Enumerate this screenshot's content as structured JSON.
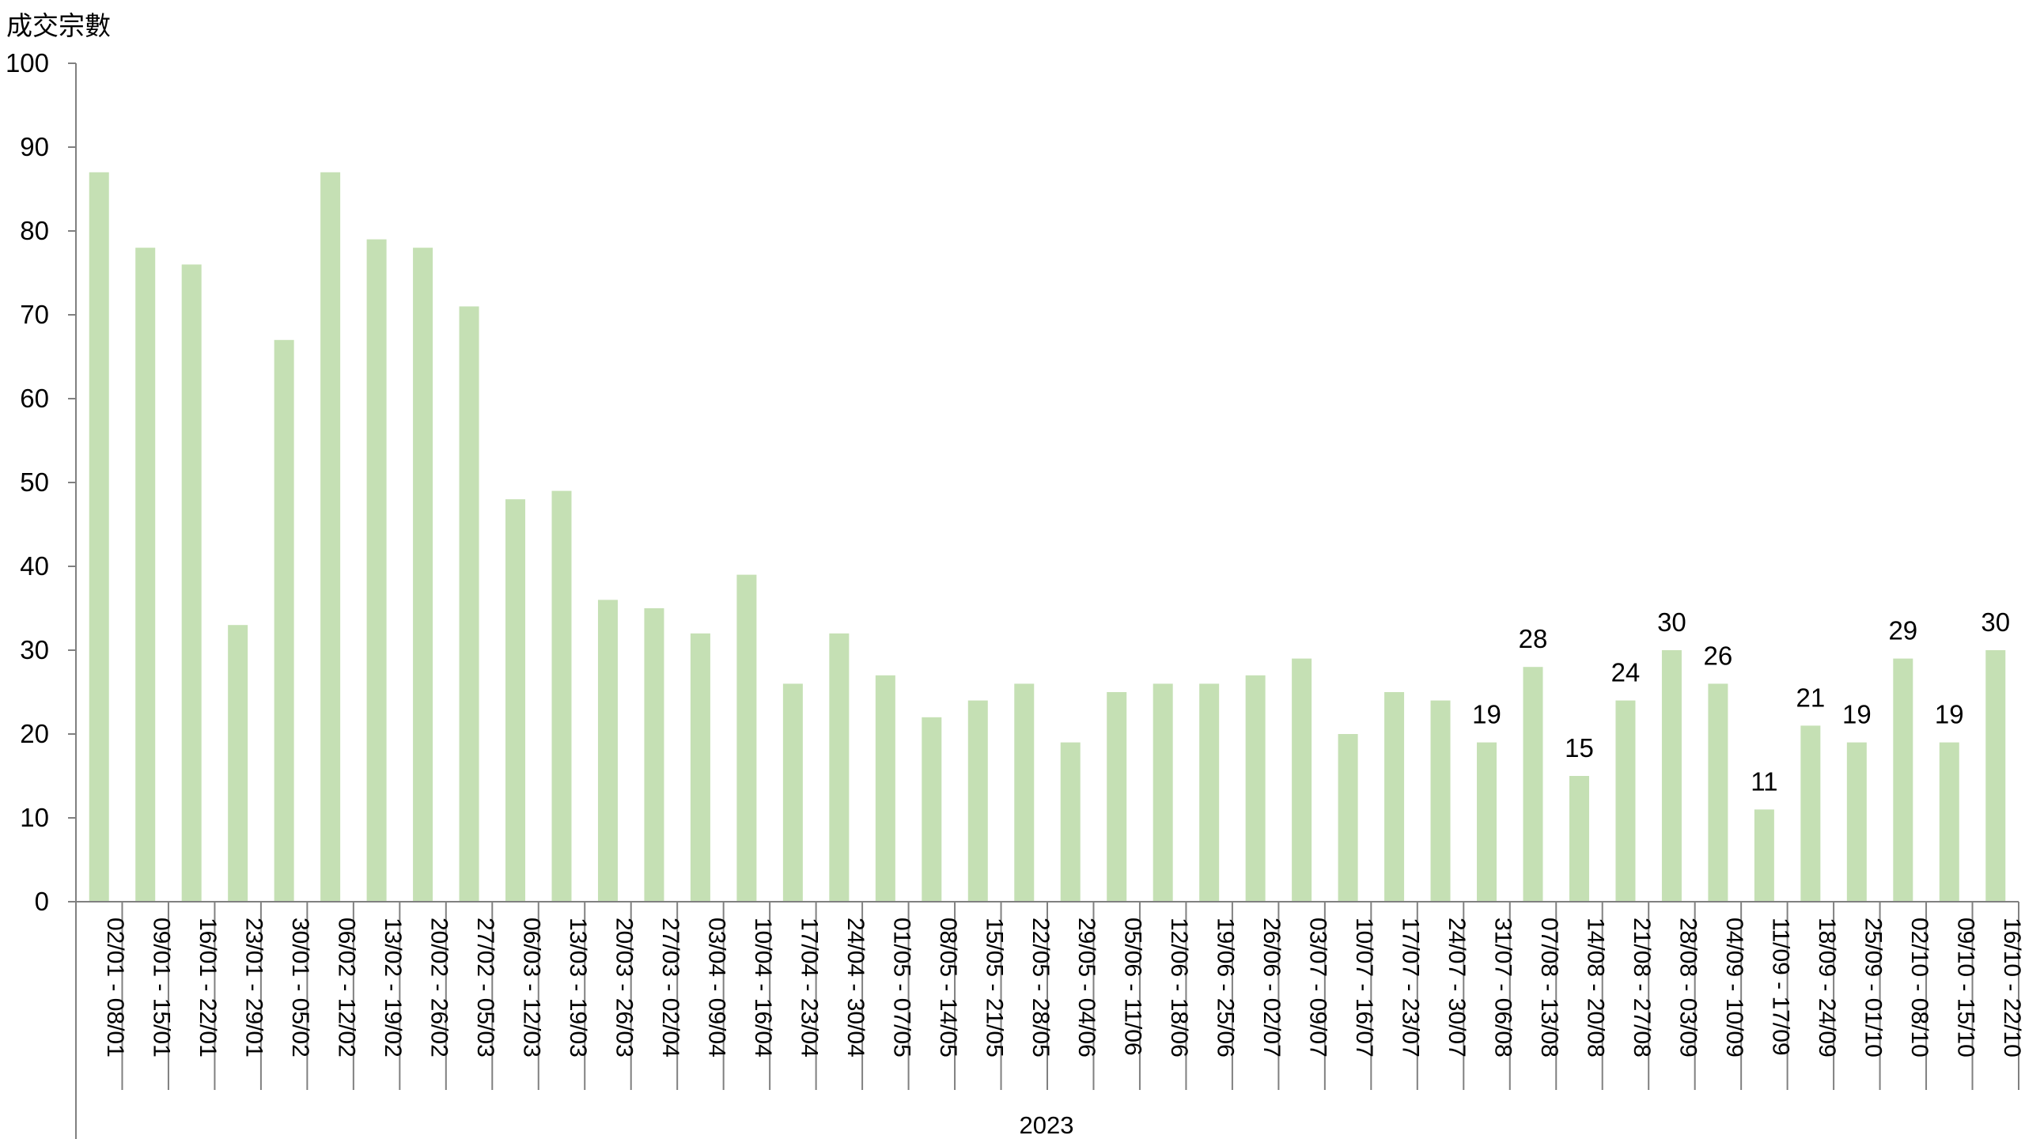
{
  "chart_data": {
    "type": "bar",
    "title": "",
    "ylabel": "成交宗數",
    "xlabel": "",
    "group_label": "2023",
    "ylim": [
      0,
      100
    ],
    "yticks": [
      0,
      10,
      20,
      30,
      40,
      50,
      60,
      70,
      80,
      90,
      100
    ],
    "grid": false,
    "legend": "none",
    "bar_color": "#c5e0b4",
    "categories": [
      "02/01 - 08/01",
      "09/01 - 15/01",
      "16/01 - 22/01",
      "23/01 - 29/01",
      "30/01 - 05/02",
      "06/02 - 12/02",
      "13/02 - 19/02",
      "20/02 - 26/02",
      "27/02 - 05/03",
      "06/03 - 12/03",
      "13/03 - 19/03",
      "20/03 - 26/03",
      "27/03 - 02/04",
      "03/04 - 09/04",
      "10/04 - 16/04",
      "17/04 - 23/04",
      "24/04 - 30/04",
      "01/05 - 07/05",
      "08/05 - 14/05",
      "15/05 - 21/05",
      "22/05 - 28/05",
      "29/05 - 04/06",
      "05/06 - 11/06",
      "12/06 - 18/06",
      "19/06 - 25/06",
      "26/06 - 02/07",
      "03/07 - 09/07",
      "10/07 - 16/07",
      "17/07 - 23/07",
      "24/07 - 30/07",
      "31/07 - 06/08",
      "07/08 - 13/08",
      "14/08 - 20/08",
      "21/08 - 27/08",
      "28/08 - 03/09",
      "04/09 - 10/09",
      "11/09 - 17/09",
      "18/09 - 24/09",
      "25/09 - 01/10",
      "02/10 - 08/10",
      "09/10 - 15/10",
      "16/10 - 22/10"
    ],
    "values": [
      87,
      78,
      76,
      33,
      67,
      87,
      79,
      78,
      71,
      48,
      49,
      36,
      35,
      32,
      39,
      26,
      32,
      27,
      22,
      24,
      26,
      19,
      25,
      26,
      26,
      27,
      29,
      20,
      25,
      24,
      19,
      28,
      15,
      24,
      30,
      26,
      11,
      21,
      19,
      29,
      19,
      30
    ],
    "data_labels": [
      null,
      null,
      null,
      null,
      null,
      null,
      null,
      null,
      null,
      null,
      null,
      null,
      null,
      null,
      null,
      null,
      null,
      null,
      null,
      null,
      null,
      null,
      null,
      null,
      null,
      null,
      null,
      null,
      null,
      null,
      19,
      28,
      15,
      24,
      30,
      26,
      11,
      21,
      19,
      29,
      19,
      30
    ]
  }
}
